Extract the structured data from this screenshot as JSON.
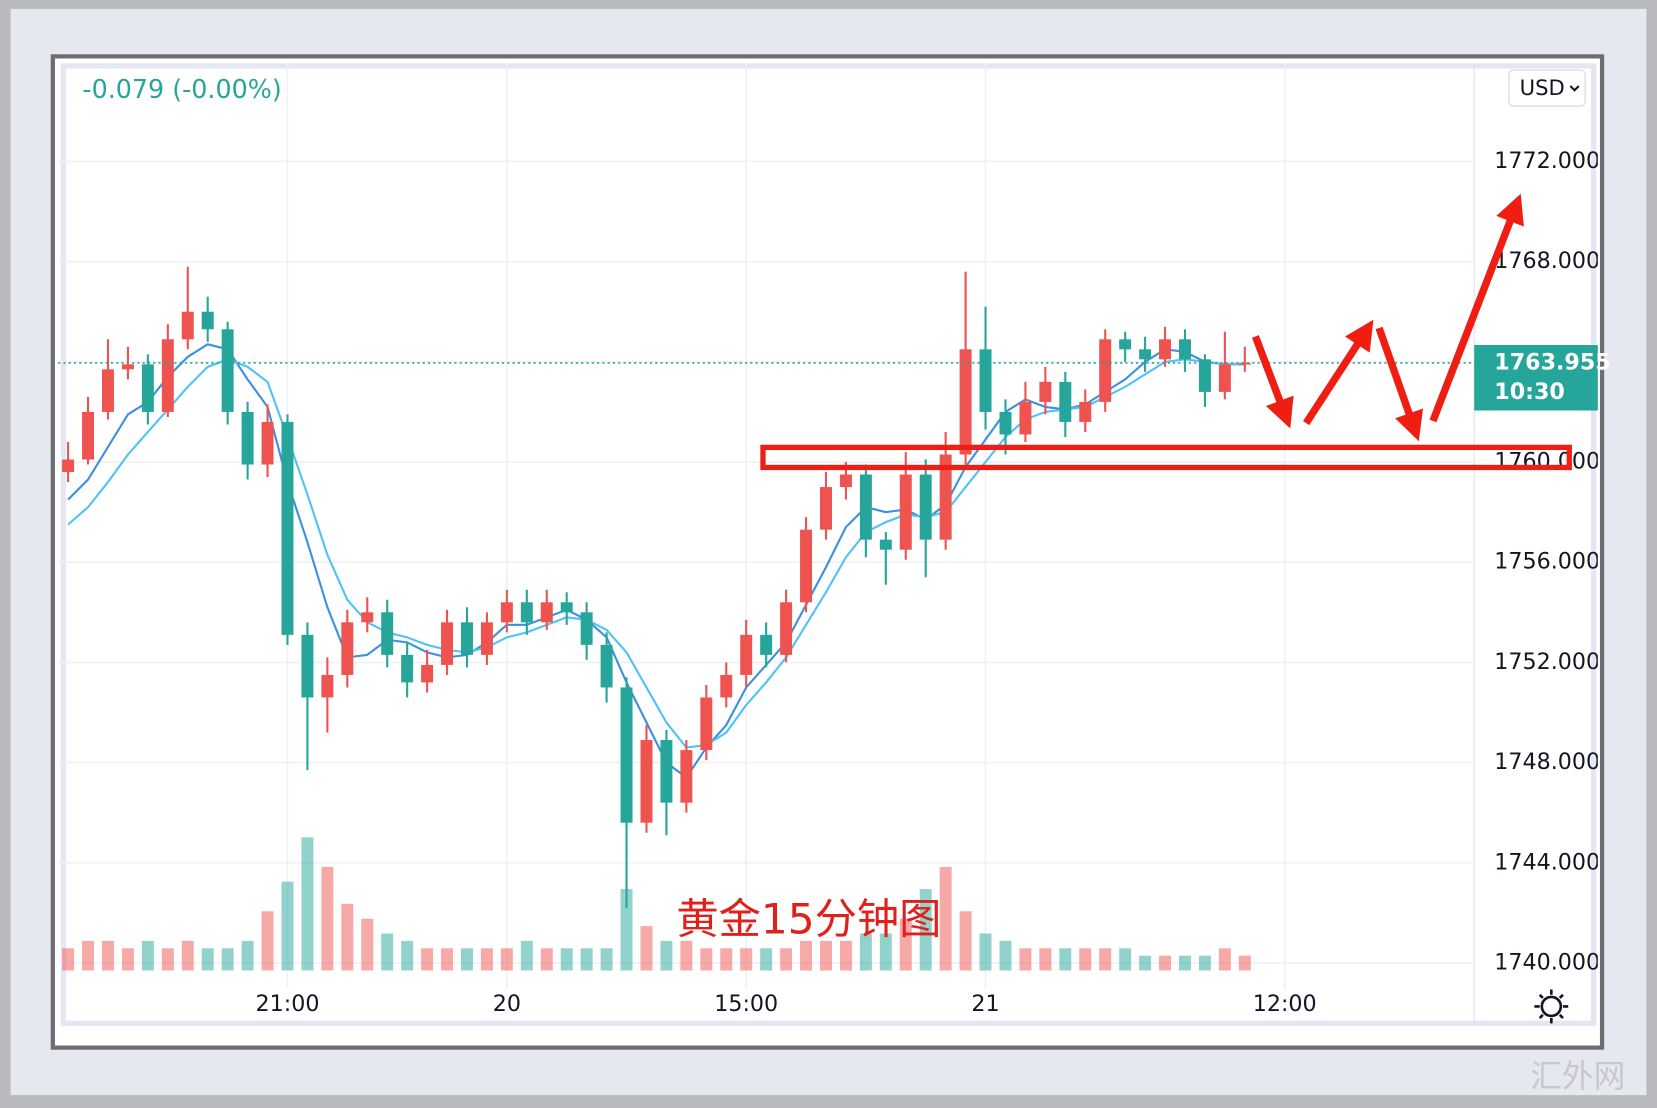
{
  "header": {
    "change": "-0.079 (-0.00%)",
    "currency": "USD",
    "watermark": "汇外网"
  },
  "chart_data": {
    "type": "candlestick",
    "annotation": "黄金15分钟图",
    "categories": [
      null,
      null,
      null,
      null,
      null,
      null,
      null,
      null,
      null,
      null,
      null,
      "21:00",
      null,
      null,
      null,
      null,
      null,
      null,
      null,
      null,
      null,
      null,
      "20",
      null,
      null,
      null,
      null,
      null,
      null,
      null,
      null,
      null,
      null,
      null,
      "15:00",
      null,
      null,
      null,
      null,
      null,
      null,
      null,
      null,
      null,
      null,
      null,
      "21",
      null,
      null,
      null,
      null,
      null,
      null,
      null,
      null,
      null,
      null,
      null,
      null,
      null,
      null,
      "12:00",
      null,
      null,
      null,
      null,
      null,
      null,
      null,
      null,
      null
    ],
    "open": [
      1759.6,
      1760.1,
      1762.0,
      1763.7,
      1763.9,
      1762.0,
      1764.9,
      1766.0,
      1765.3,
      1762.0,
      1759.9,
      1761.6,
      1753.1,
      1750.6,
      1751.5,
      1753.6,
      1754.0,
      1752.3,
      1751.2,
      1751.9,
      1753.6,
      1752.3,
      1753.6,
      1754.4,
      1753.6,
      1754.4,
      1754.0,
      1752.7,
      1751.0,
      1745.6,
      1748.9,
      1746.4,
      1748.5,
      1750.6,
      1751.5,
      1753.1,
      1752.3,
      1754.4,
      1757.3,
      1759.0,
      1759.5,
      1756.9,
      1756.5,
      1759.5,
      1756.9,
      1760.3,
      1764.5,
      1762.0,
      1761.1,
      1762.4,
      1763.2,
      1761.6,
      1762.4,
      1764.9,
      1764.5,
      1764.1,
      1764.9,
      1764.1,
      1762.8,
      1763.9,
      null,
      null,
      null,
      null,
      null,
      null,
      null,
      null,
      null,
      null,
      null
    ],
    "high": [
      1760.8,
      1762.6,
      1764.9,
      1764.6,
      1764.3,
      1765.5,
      1767.8,
      1766.6,
      1765.6,
      1762.4,
      1762.3,
      1761.9,
      1753.6,
      1752.2,
      1754.1,
      1754.6,
      1754.5,
      1752.8,
      1752.5,
      1754.1,
      1754.2,
      1754.0,
      1754.9,
      1754.9,
      1754.9,
      1754.8,
      1754.4,
      1753.2,
      1751.4,
      1749.5,
      1749.3,
      1748.9,
      1751.1,
      1752.0,
      1753.7,
      1753.6,
      1754.9,
      1757.8,
      1759.6,
      1760.0,
      1759.9,
      1757.2,
      1760.4,
      1760.1,
      1761.2,
      1767.6,
      1766.2,
      1762.5,
      1763.2,
      1763.8,
      1763.6,
      1762.9,
      1765.3,
      1765.2,
      1765.0,
      1765.4,
      1765.3,
      1764.3,
      1765.2,
      1764.6,
      null,
      null,
      null,
      null,
      null,
      null,
      null,
      null,
      null,
      null,
      null
    ],
    "low": [
      1759.2,
      1759.9,
      1761.7,
      1763.3,
      1761.5,
      1761.8,
      1764.5,
      1764.8,
      1761.5,
      1759.3,
      1759.4,
      1752.7,
      1747.7,
      1749.2,
      1751.0,
      1753.2,
      1751.8,
      1750.6,
      1750.8,
      1751.5,
      1751.8,
      1751.9,
      1753.2,
      1753.1,
      1753.3,
      1753.5,
      1752.1,
      1750.4,
      1742.2,
      1745.2,
      1745.1,
      1746.0,
      1748.1,
      1750.2,
      1751.0,
      1751.8,
      1752.0,
      1754.0,
      1756.9,
      1758.5,
      1756.2,
      1755.1,
      1756.1,
      1755.4,
      1756.5,
      1759.9,
      1761.3,
      1760.3,
      1760.8,
      1761.9,
      1761.0,
      1761.2,
      1762.0,
      1764.0,
      1763.6,
      1763.8,
      1763.6,
      1762.2,
      1762.5,
      1763.6,
      null,
      null,
      null,
      null,
      null,
      null,
      null,
      null,
      null,
      null,
      null
    ],
    "close": [
      1760.1,
      1762.0,
      1763.7,
      1763.9,
      1762.0,
      1764.9,
      1766.0,
      1765.3,
      1762.0,
      1759.9,
      1761.6,
      1753.1,
      1750.6,
      1751.5,
      1753.6,
      1754.0,
      1752.3,
      1751.2,
      1751.9,
      1753.6,
      1752.3,
      1753.6,
      1754.4,
      1753.6,
      1754.4,
      1754.0,
      1752.7,
      1751.0,
      1745.6,
      1748.9,
      1746.4,
      1748.5,
      1750.6,
      1751.5,
      1753.1,
      1752.3,
      1754.4,
      1757.3,
      1759.0,
      1759.5,
      1756.9,
      1756.5,
      1759.5,
      1756.9,
      1760.3,
      1764.5,
      1762.0,
      1761.1,
      1762.4,
      1763.2,
      1761.6,
      1762.4,
      1764.9,
      1764.5,
      1764.1,
      1764.9,
      1764.1,
      1762.8,
      1763.9,
      1763.955,
      null,
      null,
      null,
      null,
      null,
      null,
      null,
      null,
      null,
      null,
      null
    ],
    "volume": [
      3,
      4,
      4,
      3,
      4,
      3,
      4,
      3,
      3,
      4,
      8,
      12,
      18,
      14,
      9,
      7,
      5,
      4,
      3,
      3,
      3,
      3,
      3,
      4,
      3,
      3,
      3,
      3,
      11,
      6,
      4,
      4,
      3,
      3,
      3,
      3,
      3,
      4,
      4,
      4,
      5,
      5,
      7,
      11,
      14,
      8,
      5,
      4,
      3,
      3,
      3,
      3,
      3,
      3,
      2,
      2,
      2,
      2,
      3,
      2,
      null,
      null,
      null,
      null,
      null,
      null,
      null,
      null,
      null,
      null,
      null
    ],
    "moving_averages": [
      {
        "color": "#3d8fe0",
        "values": [
          1758.5,
          1759.3,
          1760.6,
          1761.9,
          1762.4,
          1763.4,
          1764.2,
          1764.7,
          1764.5,
          1763.3,
          1762.2,
          1759.2,
          1756.8,
          1754.2,
          1752.2,
          1752.3,
          1752.9,
          1752.8,
          1752.4,
          1752.2,
          1752.3,
          1752.8,
          1753.5,
          1753.5,
          1753.8,
          1754.1,
          1753.7,
          1753.0,
          1751.2,
          1749.6,
          1748.0,
          1747.4,
          1748.6,
          1749.5,
          1751.0,
          1751.9,
          1752.8,
          1754.3,
          1755.8,
          1757.4,
          1758.2,
          1758.0,
          1758.1,
          1757.7,
          1758.3,
          1759.8,
          1760.9,
          1762.0,
          1762.5,
          1762.2,
          1762.1,
          1762.3,
          1762.8,
          1763.3,
          1764.0,
          1764.5,
          1764.4,
          1764.0,
          1763.9,
          1763.9,
          null,
          null,
          null,
          null,
          null,
          null,
          null,
          null,
          null,
          null,
          null
        ]
      },
      {
        "color": "#4fc3f7",
        "values": [
          1757.5,
          1758.2,
          1759.2,
          1760.3,
          1761.2,
          1762.1,
          1763.0,
          1763.8,
          1764.1,
          1763.8,
          1763.2,
          1761.0,
          1758.7,
          1756.3,
          1754.5,
          1753.6,
          1753.2,
          1753.0,
          1752.7,
          1752.5,
          1752.4,
          1752.6,
          1753.0,
          1753.2,
          1753.5,
          1753.8,
          1753.7,
          1753.3,
          1752.4,
          1751.0,
          1749.6,
          1748.6,
          1748.7,
          1749.2,
          1750.3,
          1751.2,
          1752.2,
          1753.5,
          1754.8,
          1756.2,
          1757.2,
          1757.6,
          1757.9,
          1757.8,
          1758.0,
          1759.0,
          1760.0,
          1761.0,
          1761.7,
          1762.0,
          1762.1,
          1762.2,
          1762.6,
          1763.0,
          1763.5,
          1764.0,
          1764.1,
          1764.0,
          1763.9,
          1763.9,
          null,
          null,
          null,
          null,
          null,
          null,
          null,
          null,
          null,
          null,
          null
        ]
      }
    ],
    "colors": {
      "up": "#ef5350",
      "down": "#26a69a"
    },
    "last_price": 1763.955,
    "countdown": "10:30",
    "ylim": [
      1739.7,
      1775.9
    ],
    "yticks": [
      {
        "value": 1740,
        "label": "1740.000"
      },
      {
        "value": 1744,
        "label": "1744.000"
      },
      {
        "value": 1748,
        "label": "1748.000"
      },
      {
        "value": 1752,
        "label": "1752.000"
      },
      {
        "value": 1756,
        "label": "1756.000"
      },
      {
        "value": 1760,
        "label": "1760.000"
      },
      {
        "value": 1764,
        "label": "1764.000"
      },
      {
        "value": 1768,
        "label": "1768.000"
      },
      {
        "value": 1772,
        "label": "1772.000"
      }
    ],
    "grid": true
  }
}
